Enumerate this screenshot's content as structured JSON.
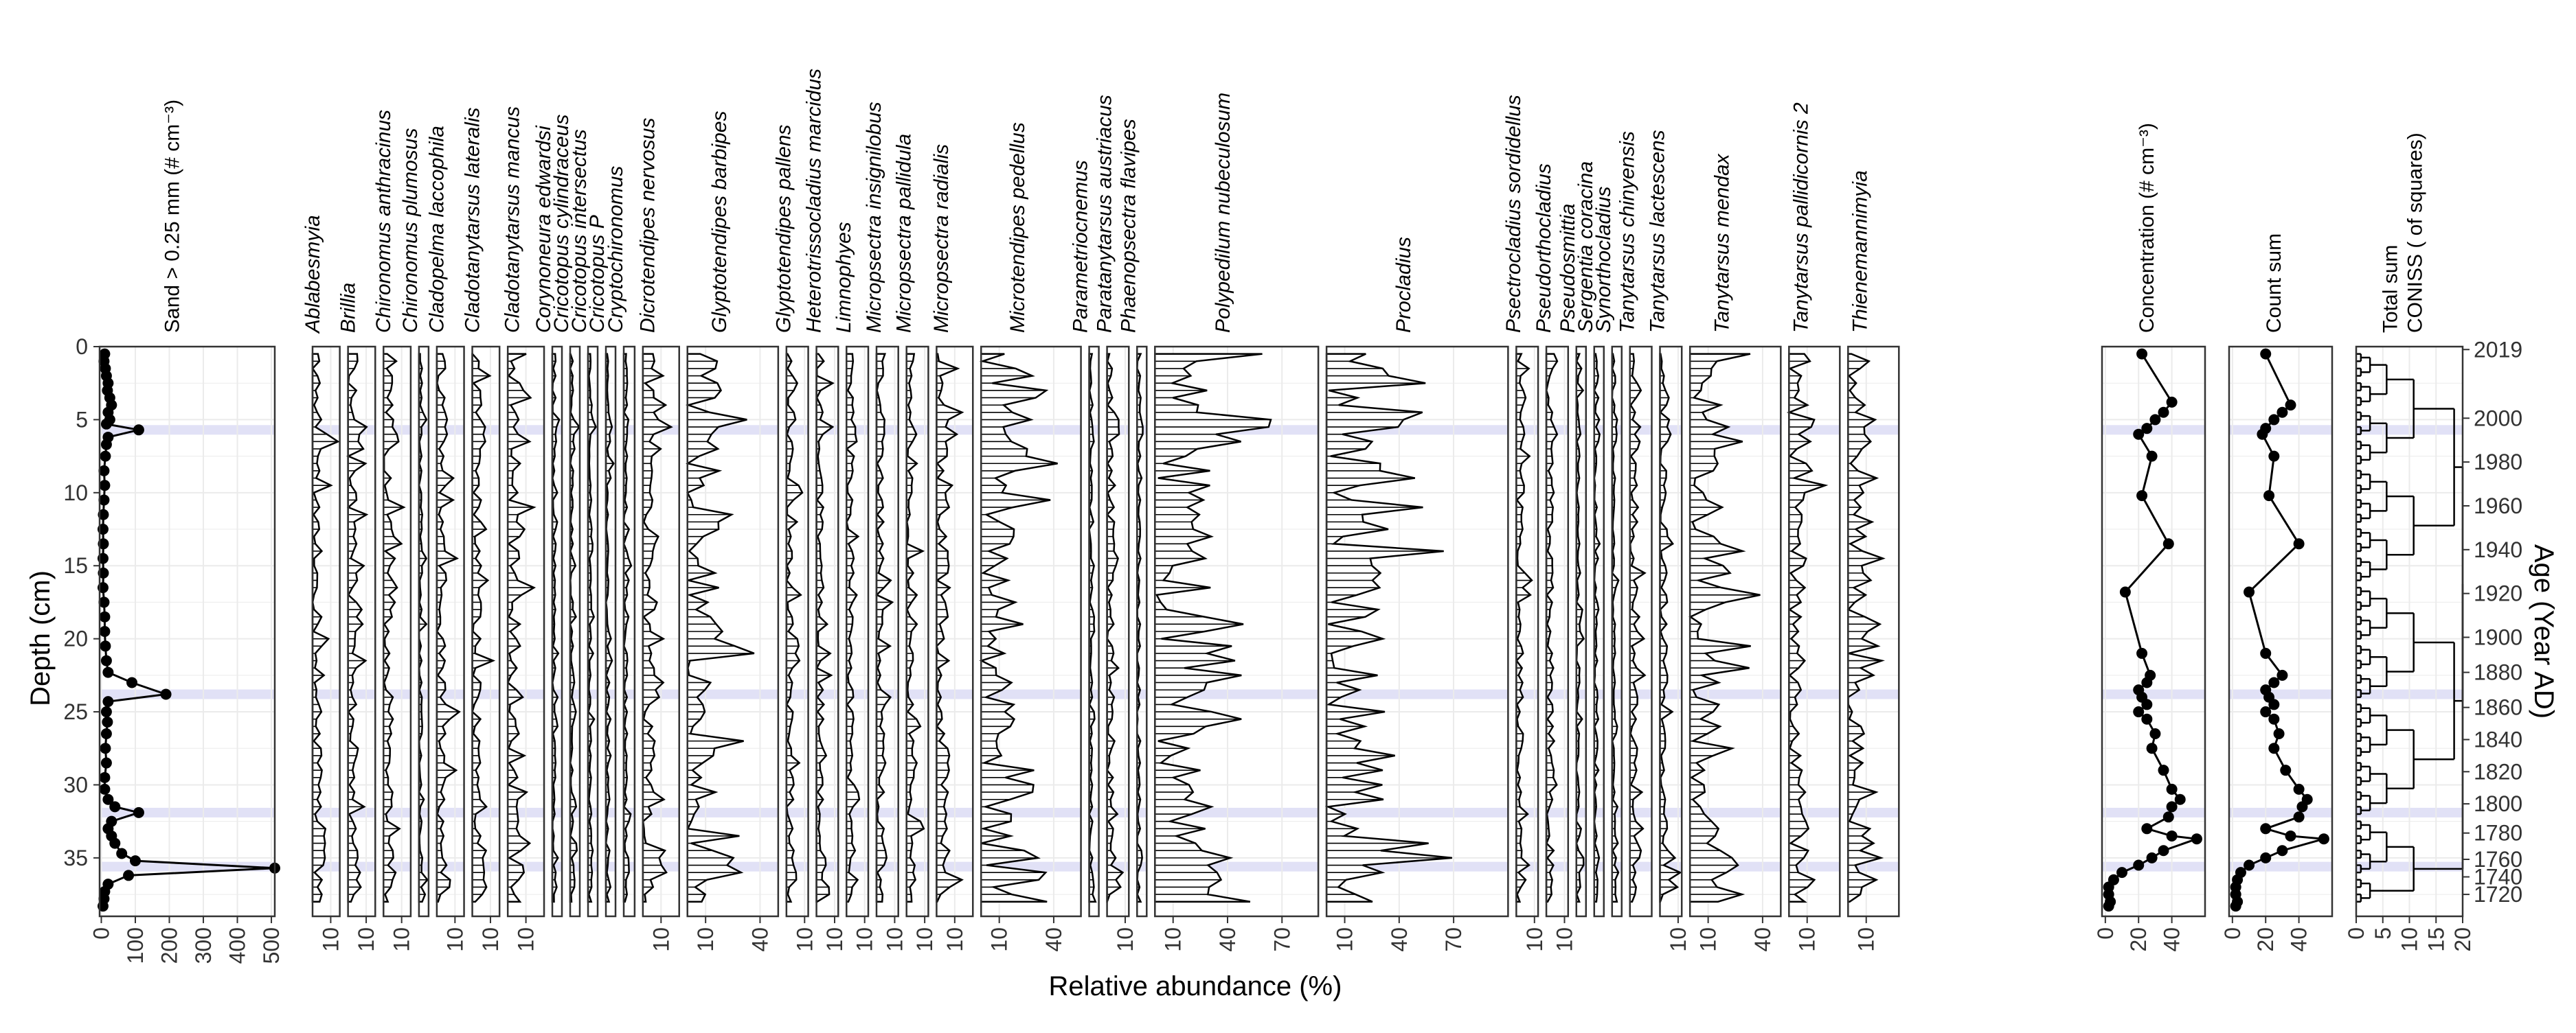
{
  "chart_data": {
    "type": "stratigraphic-diagram",
    "ylabel": "Depth (cm)",
    "xlabel": "Relative abundance (%)",
    "y2label": "Age (Year AD)",
    "depth_range": [
      0,
      39
    ],
    "depth_ticks": [
      0,
      5,
      10,
      15,
      20,
      25,
      30,
      35
    ],
    "depths": [
      0.5,
      1,
      1.5,
      2,
      2.5,
      3,
      3.5,
      4,
      4.5,
      5,
      5.5,
      6,
      6.5,
      7,
      7.5,
      8,
      8.5,
      9,
      9.5,
      10,
      10.5,
      11,
      11.5,
      12,
      12.5,
      13,
      13.5,
      14,
      14.5,
      15,
      15.5,
      16,
      16.5,
      17,
      17.5,
      18,
      18.5,
      19,
      19.5,
      20,
      20.5,
      21,
      21.5,
      22,
      22.5,
      23,
      23.5,
      24,
      24.5,
      25,
      25.5,
      26,
      26.5,
      27,
      27.5,
      28,
      28.5,
      29,
      29.5,
      30,
      30.5,
      31,
      31.5,
      32,
      32.5,
      33,
      33.5,
      34,
      34.5,
      35,
      35.5,
      36,
      36.5,
      37,
      37.5,
      38
    ],
    "age_ticks": [
      {
        "label": "2019",
        "depth": 0.2
      },
      {
        "label": "2000",
        "depth": 4.9
      },
      {
        "label": "1980",
        "depth": 7.9
      },
      {
        "label": "1960",
        "depth": 10.9
      },
      {
        "label": "1940",
        "depth": 13.9
      },
      {
        "label": "1920",
        "depth": 16.9
      },
      {
        "label": "1900",
        "depth": 19.9
      },
      {
        "label": "1880",
        "depth": 22.3
      },
      {
        "label": "1860",
        "depth": 24.7
      },
      {
        "label": "1840",
        "depth": 26.9
      },
      {
        "label": "1820",
        "depth": 29.1
      },
      {
        "label": "1800",
        "depth": 31.3
      },
      {
        "label": "1780",
        "depth": 33.3
      },
      {
        "label": "1760",
        "depth": 35.1
      },
      {
        "label": "1740",
        "depth": 36.3
      },
      {
        "label": "1720",
        "depth": 37.5
      }
    ],
    "highlight_depths": [
      5.7,
      23.8,
      31.9,
      35.6
    ],
    "sand": {
      "name": "Sand > 0.25 mm (# cm⁻³)",
      "xlim": [
        -5,
        510
      ],
      "ticks": [
        "0",
        "100",
        "200",
        "300",
        "400",
        "500"
      ],
      "tick_values": [
        0,
        100,
        200,
        300,
        400,
        500
      ],
      "points": [
        [
          10,
          0.5
        ],
        [
          8,
          1
        ],
        [
          12,
          1.5
        ],
        [
          15,
          2
        ],
        [
          20,
          2.5
        ],
        [
          18,
          3
        ],
        [
          25,
          3.5
        ],
        [
          30,
          4
        ],
        [
          20,
          4.5
        ],
        [
          25,
          5
        ],
        [
          15,
          5.3
        ],
        [
          110,
          5.7
        ],
        [
          20,
          6.2
        ],
        [
          15,
          6.7
        ],
        [
          12,
          7.5
        ],
        [
          8,
          8.5
        ],
        [
          10,
          9.5
        ],
        [
          8,
          10.5
        ],
        [
          6,
          11.5
        ],
        [
          5,
          12.5
        ],
        [
          6,
          13.5
        ],
        [
          5,
          14.5
        ],
        [
          6,
          15.5
        ],
        [
          5,
          16.5
        ],
        [
          8,
          17.5
        ],
        [
          10,
          18.5
        ],
        [
          10,
          19.5
        ],
        [
          12,
          20.5
        ],
        [
          15,
          21.5
        ],
        [
          20,
          22.3
        ],
        [
          90,
          23
        ],
        [
          190,
          23.8
        ],
        [
          20,
          24.3
        ],
        [
          15,
          25
        ],
        [
          18,
          25.7
        ],
        [
          15,
          26.5
        ],
        [
          12,
          27.5
        ],
        [
          15,
          28.5
        ],
        [
          10,
          29.5
        ],
        [
          10,
          30.3
        ],
        [
          20,
          31
        ],
        [
          40,
          31.5
        ],
        [
          110,
          31.9
        ],
        [
          30,
          32.5
        ],
        [
          20,
          33
        ],
        [
          30,
          33.5
        ],
        [
          40,
          34
        ],
        [
          60,
          34.7
        ],
        [
          100,
          35.2
        ],
        [
          510,
          35.7
        ],
        [
          80,
          36.2
        ],
        [
          20,
          36.8
        ],
        [
          10,
          37.3
        ],
        [
          8,
          37.8
        ],
        [
          5,
          38.3
        ]
      ]
    },
    "taxa_label": "Relative abundance (%)",
    "taxa": [
      {
        "name": "Ablabesmyia",
        "max": 15,
        "ticks": [
          "10"
        ],
        "tick_values": [
          10
        ]
      },
      {
        "name": "Brillia",
        "max": 15,
        "ticks": [
          "10"
        ],
        "tick_values": [
          10
        ]
      },
      {
        "name": "Chironomus anthracinus",
        "max": 15,
        "ticks": [
          "10"
        ],
        "tick_values": [
          10
        ]
      },
      {
        "name": "Chironomus plumosus",
        "max": 4,
        "ticks": [],
        "tick_values": []
      },
      {
        "name": "Cladopelma laccophila",
        "max": 15,
        "ticks": [
          "10"
        ],
        "tick_values": [
          10
        ]
      },
      {
        "name": "Cladotanytarsus lateralis",
        "max": 15,
        "ticks": [
          "10"
        ],
        "tick_values": [
          10
        ]
      },
      {
        "name": "Cladotanytarsus mancus",
        "max": 20,
        "ticks": [
          "10"
        ],
        "tick_values": [
          10
        ]
      },
      {
        "name": "Corynoneura edwardsi",
        "max": 4,
        "ticks": [],
        "tick_values": []
      },
      {
        "name": "Cricotopus cylindraceus",
        "max": 4,
        "ticks": [],
        "tick_values": []
      },
      {
        "name": "Cricotopus intersectus",
        "max": 4,
        "ticks": [],
        "tick_values": []
      },
      {
        "name": "Cricotopus P",
        "max": 4,
        "ticks": [],
        "tick_values": []
      },
      {
        "name": "Cryptochironomus",
        "max": 6,
        "ticks": [],
        "tick_values": []
      },
      {
        "name": "Dicrotendipes nervosus",
        "max": 20,
        "ticks": [
          "10"
        ],
        "tick_values": [
          10
        ]
      },
      {
        "name": "Glyptotendipes barbipes",
        "max": 50,
        "ticks": [
          "10",
          "40"
        ],
        "tick_values": [
          10,
          40
        ]
      },
      {
        "name": "Glyptotendipes pallens",
        "max": 12,
        "ticks": [
          "10"
        ],
        "tick_values": [
          10
        ]
      },
      {
        "name": "Heterotrissocladius marcidus",
        "max": 12,
        "ticks": [
          "10"
        ],
        "tick_values": [
          10
        ]
      },
      {
        "name": "Limnophyes",
        "max": 12,
        "ticks": [
          "10"
        ],
        "tick_values": [
          10
        ]
      },
      {
        "name": "Micropsectra insignilobus",
        "max": 12,
        "ticks": [
          "10"
        ],
        "tick_values": [
          10
        ]
      },
      {
        "name": "Micropsectra pallidula",
        "max": 12,
        "ticks": [
          "10"
        ],
        "tick_values": [
          10
        ]
      },
      {
        "name": "Micropsectra radialis",
        "max": 20,
        "ticks": [
          "10"
        ],
        "tick_values": [
          10
        ]
      },
      {
        "name": "Microtendipes pedellus",
        "max": 55,
        "ticks": [
          "10",
          "40"
        ],
        "tick_values": [
          10,
          40
        ]
      },
      {
        "name": "Parametriocnemus",
        "max": 4,
        "ticks": [],
        "tick_values": []
      },
      {
        "name": "Paratanytarsus austriacus",
        "max": 12,
        "ticks": [
          "10"
        ],
        "tick_values": [
          10
        ]
      },
      {
        "name": "Phaenopsectra flavipes",
        "max": 4,
        "ticks": [],
        "tick_values": []
      },
      {
        "name": "Polypedilum nubeculosum",
        "max": 90,
        "ticks": [
          "10",
          "40",
          "70"
        ],
        "tick_values": [
          10,
          40,
          70
        ]
      },
      {
        "name": "Procladius",
        "max": 100,
        "ticks": [
          "10",
          "40",
          "70"
        ],
        "tick_values": [
          10,
          40,
          70
        ]
      },
      {
        "name": "Psectrocladius sordidellus",
        "max": 12,
        "ticks": [
          "10"
        ],
        "tick_values": [
          10
        ]
      },
      {
        "name": "Pseudorthocladius",
        "max": 12,
        "ticks": [
          "10"
        ],
        "tick_values": [
          10
        ]
      },
      {
        "name": "Pseudosmittia",
        "max": 4,
        "ticks": [],
        "tick_values": []
      },
      {
        "name": "Sergentia coracina",
        "max": 4,
        "ticks": [],
        "tick_values": []
      },
      {
        "name": "Synorthocladius",
        "max": 4,
        "ticks": [],
        "tick_values": []
      },
      {
        "name": "Tanytarsus chinyensis",
        "max": 12,
        "ticks": [],
        "tick_values": []
      },
      {
        "name": "Tanytarsus lactescens",
        "max": 12,
        "ticks": [
          "10"
        ],
        "tick_values": [
          10
        ]
      },
      {
        "name": "Tanytarsus mendax",
        "max": 50,
        "ticks": [
          "10",
          "40"
        ],
        "tick_values": [
          10,
          40
        ]
      },
      {
        "name": "Tanytarsus pallidicornis 2",
        "max": 28,
        "ticks": [
          "10"
        ],
        "tick_values": [
          10
        ]
      },
      {
        "name": "Thienemannimyia",
        "max": 28,
        "ticks": [
          "10"
        ],
        "tick_values": [
          10
        ]
      }
    ],
    "concentration": {
      "name": "Concentration (# cm⁻³)",
      "xlim": [
        -2,
        60
      ],
      "ticks": [
        "0",
        "20",
        "40"
      ],
      "tick_values": [
        0,
        20,
        40
      ],
      "points": [
        [
          22,
          0.5
        ],
        [
          40,
          3.8
        ],
        [
          35,
          4.5
        ],
        [
          30,
          5
        ],
        [
          25,
          5.6
        ],
        [
          20,
          6
        ],
        [
          28,
          7.5
        ],
        [
          22,
          10.2
        ],
        [
          38,
          13.5
        ],
        [
          12,
          16.8
        ],
        [
          22,
          21
        ],
        [
          27,
          22.5
        ],
        [
          25,
          23
        ],
        [
          20,
          23.5
        ],
        [
          22,
          24
        ],
        [
          25,
          24.5
        ],
        [
          20,
          25
        ],
        [
          25,
          25.5
        ],
        [
          30,
          26.5
        ],
        [
          28,
          27.5
        ],
        [
          35,
          29
        ],
        [
          40,
          30.3
        ],
        [
          45,
          31
        ],
        [
          40,
          31.5
        ],
        [
          38,
          32.2
        ],
        [
          25,
          33
        ],
        [
          40,
          33.5
        ],
        [
          55,
          33.7
        ],
        [
          35,
          34.5
        ],
        [
          28,
          35
        ],
        [
          20,
          35.5
        ],
        [
          10,
          36
        ],
        [
          5,
          36.5
        ],
        [
          2,
          37
        ],
        [
          2,
          37.5
        ],
        [
          3,
          38
        ],
        [
          2,
          38.3
        ]
      ]
    },
    "count_sum": {
      "name": "Count sum",
      "xlim": [
        -2,
        60
      ],
      "ticks": [
        "0",
        "20",
        "40"
      ],
      "tick_values": [
        0,
        20,
        40
      ],
      "points": [
        [
          20,
          0.5
        ],
        [
          35,
          4
        ],
        [
          30,
          4.5
        ],
        [
          25,
          5
        ],
        [
          20,
          5.6
        ],
        [
          18,
          6
        ],
        [
          25,
          7.5
        ],
        [
          22,
          10.2
        ],
        [
          40,
          13.5
        ],
        [
          10,
          16.8
        ],
        [
          20,
          21
        ],
        [
          30,
          22.5
        ],
        [
          25,
          23
        ],
        [
          20,
          23.5
        ],
        [
          22,
          24
        ],
        [
          25,
          24.5
        ],
        [
          20,
          25
        ],
        [
          25,
          25.5
        ],
        [
          28,
          26.5
        ],
        [
          25,
          27.5
        ],
        [
          32,
          29
        ],
        [
          40,
          30.3
        ],
        [
          45,
          31
        ],
        [
          42,
          31.5
        ],
        [
          40,
          32.2
        ],
        [
          20,
          33
        ],
        [
          35,
          33.5
        ],
        [
          55,
          33.7
        ],
        [
          30,
          34.5
        ],
        [
          20,
          35
        ],
        [
          10,
          35.5
        ],
        [
          5,
          36
        ],
        [
          3,
          36.5
        ],
        [
          2,
          37
        ],
        [
          2,
          37.5
        ],
        [
          3,
          38
        ],
        [
          2,
          38.3
        ]
      ]
    },
    "coniss": {
      "name": "Total sum\nCONISS ( of squares)",
      "title_lines": [
        "Total sum",
        "CONISS ( of squares)"
      ],
      "xlim": [
        0,
        20
      ],
      "ticks": [
        "0",
        "5",
        "10",
        "15",
        "20"
      ],
      "tick_values": [
        0,
        5,
        10,
        15,
        20
      ]
    }
  }
}
